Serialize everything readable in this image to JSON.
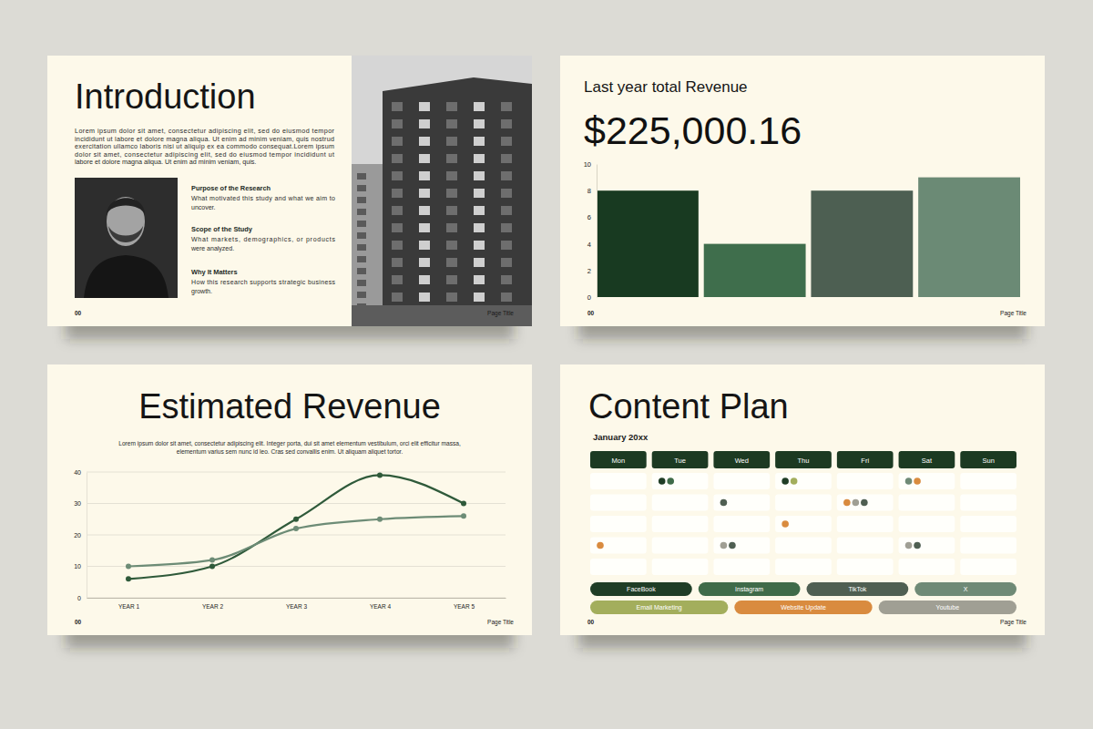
{
  "footer": {
    "page_number": "00",
    "page_title": "Page Title"
  },
  "introduction": {
    "title": "Introduction",
    "paragraph": [
      "Lorem ipsum dolor sit amet, consectetur adipiscing elit, sed do eiusmod tempor",
      "incididunt ut labore et dolore magna aliqua. Ut enim ad minim veniam, quis nostrud",
      "exercitation ullamco laboris nisi ut aliquip ex ea commodo consequat.Lorem ipsum",
      "dolor sit amet, consectetur adipiscing elit, sed do eiusmod tempor incididunt ut",
      "labore et dolore magna aliqua. Ut enim ad minim veniam, quis."
    ],
    "sections": [
      {
        "heading": "Purpose of the Research",
        "text": [
          "What motivated this study and what we aim to",
          "uncover."
        ]
      },
      {
        "heading": "Scope of the Study",
        "text": [
          "What markets, demographics, or products",
          "were analyzed."
        ]
      },
      {
        "heading": "Why It Matters",
        "text": [
          "How this research supports strategic business",
          "growth."
        ]
      }
    ]
  },
  "chart_data": [
    {
      "type": "bar",
      "title": "Last year total Revenue",
      "subtitle": "$225,000.16",
      "categories": [
        null,
        null,
        null,
        null
      ],
      "values": [
        8,
        4,
        8,
        9
      ],
      "colors": [
        "#183a21",
        "#3f6e4c",
        "#4d5f52",
        "#6b8a75"
      ],
      "ylim": [
        0,
        10
      ],
      "yticks": [
        0,
        2,
        4,
        6,
        8,
        10
      ],
      "grid": false,
      "tick_labels": "y"
    },
    {
      "type": "line",
      "title": "Estimated Revenue",
      "subtitle": [
        "Lorem ipsum dolor sit amet, consectetur adipiscing elit. Integer porta, dui sit amet elementum vestibulum, orci elit efficitur massa,",
        "elementum varius sem nunc id leo. Cras sed convallis enim. Ut aliquam aliquet tortor."
      ],
      "categories": [
        "YEAR 1",
        "YEAR 2",
        "YEAR 3",
        "YEAR 4",
        "YEAR 5"
      ],
      "series": [
        {
          "color": "#2f5a3a",
          "marker": "circle",
          "values": [
            6,
            10,
            25,
            39,
            30
          ]
        },
        {
          "color": "#6d8c76",
          "marker": "circle",
          "values": [
            10,
            12,
            22,
            25,
            26
          ]
        }
      ],
      "ylim": [
        0,
        40
      ],
      "yticks": [
        0,
        10,
        20,
        30,
        40
      ],
      "grid": true
    }
  ],
  "content_plan": {
    "title": "Content Plan",
    "month": "January 20xx",
    "days": [
      "Mon",
      "Tue",
      "Wed",
      "Thu",
      "Fri",
      "Sat",
      "Sun"
    ],
    "weeks": [
      [
        [],
        [
          "FaceBook",
          "Instagram"
        ],
        [],
        [
          "FaceBook",
          "Email Marketing"
        ],
        [],
        [
          "X",
          "Website Update"
        ],
        []
      ],
      [
        [],
        [],
        [
          "TikTok"
        ],
        [],
        [
          "Website Update",
          "Youtube",
          "TikTok"
        ],
        [],
        []
      ],
      [
        [],
        [],
        [],
        [
          "Website Update"
        ],
        [],
        [],
        []
      ],
      [
        [
          "Website Update"
        ],
        [],
        [
          "Youtube",
          "TikTok"
        ],
        [],
        [],
        [
          "Youtube",
          "TikTok"
        ],
        []
      ],
      [
        [],
        [],
        [],
        [],
        [],
        [],
        []
      ]
    ],
    "channels": [
      {
        "name": "FaceBook",
        "color": "#1f3d26"
      },
      {
        "name": "Instagram",
        "color": "#3f6b49"
      },
      {
        "name": "TikTok",
        "color": "#4f5f52"
      },
      {
        "name": "X",
        "color": "#6f8a76"
      },
      {
        "name": "Email Marketing",
        "color": "#a3ae5c"
      },
      {
        "name": "Website Update",
        "color": "#d98b3f"
      },
      {
        "name": "Youtube",
        "color": "#a09f94"
      }
    ]
  }
}
